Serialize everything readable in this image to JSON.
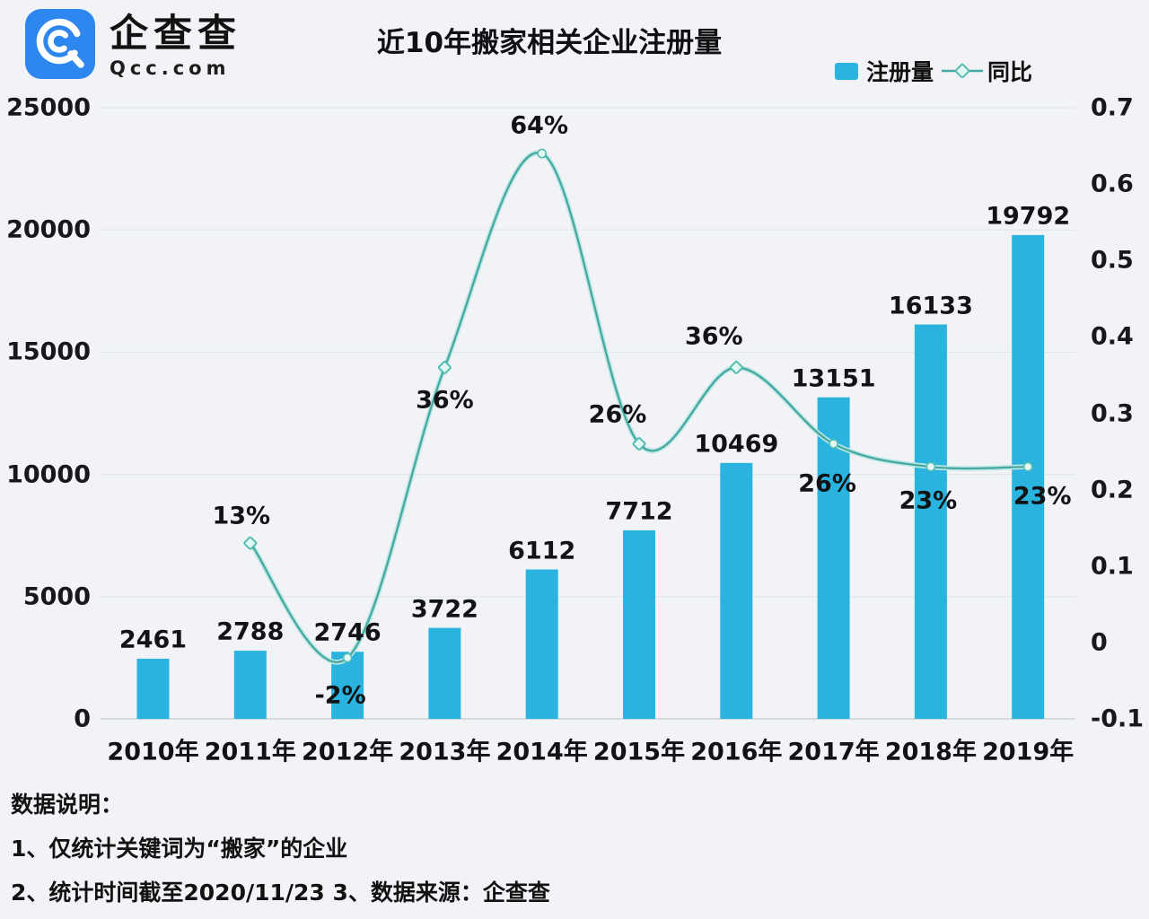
{
  "brand": {
    "name": "企查查",
    "site": "Qcc.com"
  },
  "title": "近10年搬家相关企业注册量",
  "legend": {
    "bar_label": "注册量",
    "line_label": "同比"
  },
  "notes": {
    "heading": "数据说明：",
    "line1": "1、仅统计关键词为“搬家”的企业",
    "line2": "2、统计时间截至2020/11/23  3、数据来源：企查查"
  },
  "colors": {
    "background": "#f1f3f6",
    "bar": "#2ab3de",
    "line": "#45a8a2",
    "line_glow": "#bfe8e3",
    "marker_fill": "#e3f7f3",
    "marker_stroke": "#54bcb2",
    "grid": "#e2e6eb",
    "axis": "#ccd1d7",
    "text": "#121315",
    "logo_blue": "#2d87ee"
  },
  "chart_data": {
    "type": "bar+line",
    "title": "近10年搬家相关企业注册量",
    "categories": [
      "2010年",
      "2011年",
      "2012年",
      "2013年",
      "2014年",
      "2015年",
      "2016年",
      "2017年",
      "2018年",
      "2019年"
    ],
    "series": [
      {
        "name": "注册量",
        "type": "bar",
        "axis": "left",
        "values": [
          2461,
          2788,
          2746,
          3722,
          6112,
          7712,
          10469,
          13151,
          16133,
          19792
        ],
        "value_labels": [
          "2461",
          "2788",
          "2746",
          "3722",
          "6112",
          "7712",
          "10469",
          "13151",
          "16133",
          "19792"
        ]
      },
      {
        "name": "同比",
        "type": "line",
        "axis": "right",
        "values": [
          null,
          0.13,
          -0.02,
          0.36,
          0.64,
          0.26,
          0.36,
          0.26,
          0.23,
          0.23
        ],
        "point_labels": [
          "",
          "13%",
          "-2%",
          "36%",
          "64%",
          "26%",
          "36%",
          "26%",
          "23%",
          "23%"
        ]
      }
    ],
    "left_axis": {
      "ticks": [
        "25000",
        "20000",
        "15000",
        "10000",
        "5000",
        "0"
      ],
      "min": 0,
      "max": 25000
    },
    "right_axis": {
      "ticks": [
        "0.7",
        "0.6",
        "0.5",
        "0.4",
        "0.3",
        "0.2",
        "0.1",
        "0",
        "-0.1"
      ],
      "min": -0.1,
      "max": 0.7
    },
    "grid": true,
    "legend_position": "top-right"
  }
}
